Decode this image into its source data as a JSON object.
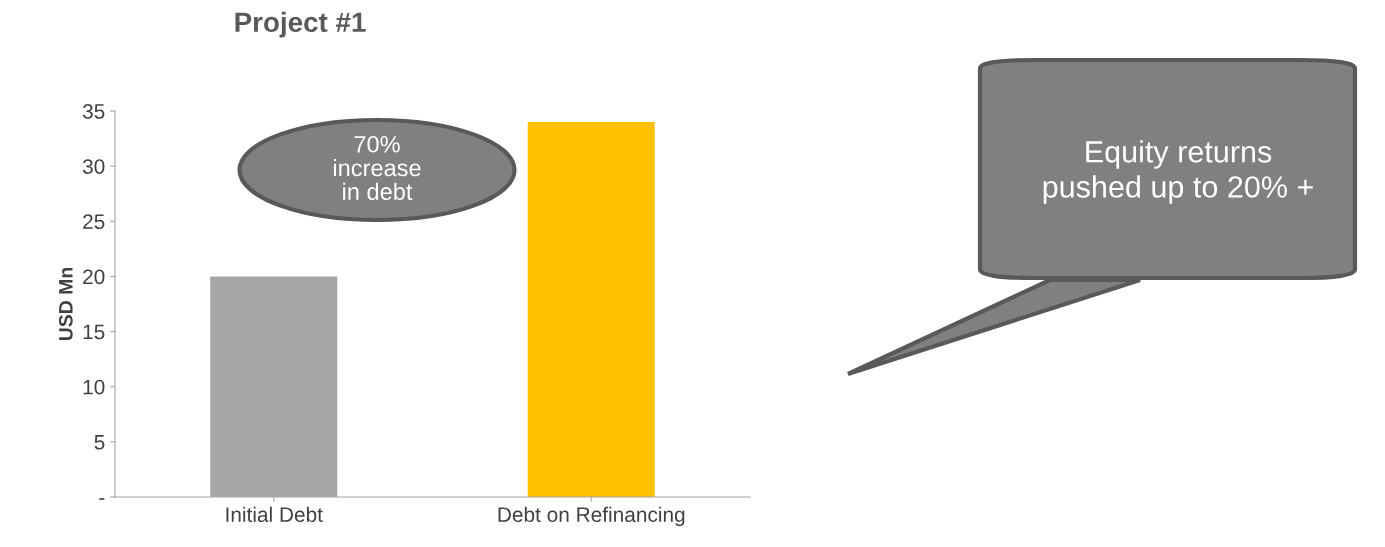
{
  "chart_data": {
    "type": "bar",
    "title": "Project #1",
    "ylabel": "USD Mn",
    "categories": [
      "Initial Debt",
      "Debt on Refinancing"
    ],
    "values": [
      20,
      34
    ],
    "colors": [
      "#a6a6a6",
      "#ffc000"
    ],
    "ylim": [
      0,
      35
    ],
    "yticks": [
      {
        "value": 0,
        "label": "-"
      },
      5,
      10,
      15,
      20,
      25,
      30,
      35
    ],
    "grid": false,
    "annotations": [
      "70%\nincrease\nin debt",
      "Equity returns\npushed up to 20% +"
    ]
  }
}
